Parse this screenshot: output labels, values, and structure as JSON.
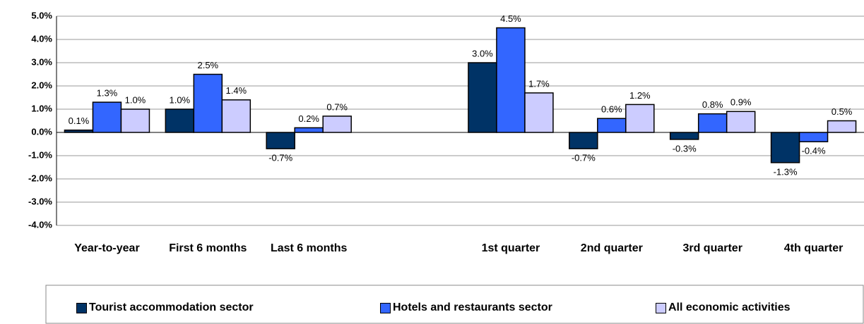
{
  "chart_data": {
    "type": "bar",
    "categories": [
      "Year-to-year",
      "First 6 months",
      "Last 6 months",
      null,
      "1st quarter",
      "2nd quarter",
      "3rd quarter",
      "4th quarter"
    ],
    "series": [
      {
        "name": "Tourist accommodation sector",
        "color": "#003366",
        "values": [
          0.1,
          1.0,
          -0.7,
          null,
          3.0,
          -0.7,
          -0.3,
          -1.3
        ],
        "value_labels": [
          "0.1%",
          "1.0%",
          "-0.7%",
          null,
          "3.0%",
          "-0.7%",
          "-0.3%",
          "-1.3%"
        ]
      },
      {
        "name": "Hotels and restaurants sector",
        "color": "#3366ff",
        "values": [
          1.3,
          2.5,
          0.2,
          null,
          4.5,
          0.6,
          0.8,
          -0.4
        ],
        "value_labels": [
          "1.3%",
          "2.5%",
          "0.2%",
          null,
          "4.5%",
          "0.6%",
          "0.8%",
          "-0.4%"
        ]
      },
      {
        "name": "All economic activities",
        "color": "#ccccff",
        "values": [
          1.0,
          1.4,
          0.7,
          null,
          1.7,
          1.2,
          0.9,
          0.5
        ],
        "value_labels": [
          "1.0%",
          "1.4%",
          "0.7%",
          null,
          "1.7%",
          "1.2%",
          "0.9%",
          "0.5%"
        ]
      }
    ],
    "ylim": [
      -4,
      5
    ],
    "yticks": [
      {
        "value": -4,
        "label": "-4.0%"
      },
      {
        "value": -3,
        "label": "-3.0%"
      },
      {
        "value": -2,
        "label": "-2.0%"
      },
      {
        "value": -1,
        "label": "-1.0%"
      },
      {
        "value": 0,
        "label": "0.0%"
      },
      {
        "value": 1,
        "label": "1.0%"
      },
      {
        "value": 2,
        "label": "2.0%"
      },
      {
        "value": 3,
        "label": "3.0%"
      },
      {
        "value": 4,
        "label": "4.0%"
      },
      {
        "value": 5,
        "label": "5.0%"
      }
    ],
    "grid": true
  }
}
